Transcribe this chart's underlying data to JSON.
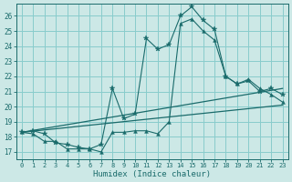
{
  "xlabel": "Humidex (Indice chaleur)",
  "background_color": "#cce8e6",
  "grid_color": "#88cccc",
  "line_color": "#1a6b6b",
  "x_ticks": [
    0,
    1,
    2,
    3,
    4,
    5,
    6,
    7,
    8,
    9,
    10,
    11,
    12,
    13,
    14,
    15,
    16,
    17,
    18,
    19,
    20,
    21,
    22,
    23
  ],
  "y_ticks": [
    17,
    18,
    19,
    20,
    21,
    22,
    23,
    24,
    25,
    26
  ],
  "ylim": [
    16.5,
    26.8
  ],
  "xlim": [
    -0.5,
    23.5
  ],
  "series1_y": [
    18.3,
    18.4,
    18.2,
    17.6,
    17.5,
    17.3,
    17.2,
    17.5,
    21.2,
    19.2,
    19.5,
    24.5,
    23.8,
    24.1,
    26.0,
    26.6,
    25.7,
    25.1,
    22.0,
    21.5,
    21.7,
    21.0,
    21.2,
    20.8
  ],
  "series2_y": [
    18.3,
    18.2,
    17.7,
    17.7,
    17.2,
    17.2,
    17.2,
    17.0,
    18.3,
    18.3,
    18.4,
    18.4,
    18.2,
    19.0,
    25.5,
    25.8,
    25.0,
    24.4,
    22.0,
    21.5,
    21.8,
    21.2,
    20.8,
    20.3
  ],
  "trend1_x": [
    0,
    23
  ],
  "trend1_y": [
    18.3,
    21.2
  ],
  "trend2_x": [
    0,
    23
  ],
  "trend2_y": [
    18.3,
    20.1
  ]
}
